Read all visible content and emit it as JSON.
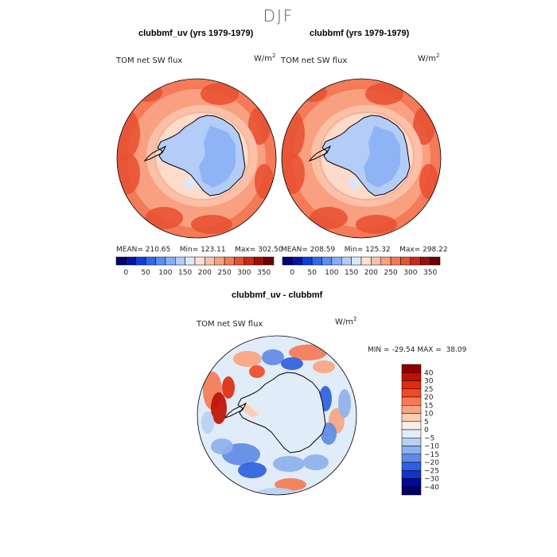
{
  "season": "DJF",
  "panels": [
    {
      "title": "clubbmf_uv (yrs 1979-1979)",
      "variable": "TOM net SW flux",
      "units_base": "W/m",
      "units_exp": "2",
      "stats": {
        "mean_label": "MEAN=",
        "mean": "210.65",
        "min_label": "Min=",
        "min": "123.11",
        "max_label": "Max=",
        "max": "302.50"
      }
    },
    {
      "title": "clubbmf (yrs 1979-1979)",
      "variable": "TOM net SW flux",
      "units_base": "W/m",
      "units_exp": "2",
      "stats": {
        "mean_label": "MEAN=",
        "mean": "208.59",
        "min_label": "Min=",
        "min": "125.32",
        "max_label": "Max=",
        "max": "298.22"
      }
    }
  ],
  "diff_panel": {
    "title": "clubbmf_uv - clubbmf",
    "variable": "TOM net SW flux",
    "units_base": "W/m",
    "units_exp": "2",
    "minmax": {
      "min_label": "MIN =",
      "min": "-29.54",
      "max_label": "MAX =",
      "max": "38.09"
    }
  },
  "chart_data": [
    {
      "type": "heatmap",
      "projection": "south-polar-stereographic",
      "title": "clubbmf_uv (yrs 1979-1979)",
      "field": "TOM net SW flux",
      "units": "W/m2",
      "mean": 210.65,
      "min": 123.11,
      "max": 302.5,
      "colorbar": {
        "orientation": "horizontal",
        "levels": [
          0,
          25,
          50,
          75,
          100,
          125,
          150,
          175,
          200,
          225,
          250,
          275,
          300,
          325,
          350
        ],
        "tick_labels": [
          "0",
          "50",
          "100",
          "150",
          "200",
          "250",
          "300",
          "350"
        ],
        "colors": [
          "#00006e",
          "#0015a8",
          "#0a3ee0",
          "#2f6ae8",
          "#5a8ef0",
          "#86aef5",
          "#b3ccf8",
          "#dbe8fb",
          "#fde0d0",
          "#fbc1a8",
          "#f8a07f",
          "#f47a58",
          "#e85234",
          "#cc2a14",
          "#9e0e06",
          "#6e0000"
        ]
      }
    },
    {
      "type": "heatmap",
      "projection": "south-polar-stereographic",
      "title": "clubbmf (yrs 1979-1979)",
      "field": "TOM net SW flux",
      "units": "W/m2",
      "mean": 208.59,
      "min": 125.32,
      "max": 298.22,
      "colorbar": {
        "orientation": "horizontal",
        "levels": [
          0,
          25,
          50,
          75,
          100,
          125,
          150,
          175,
          200,
          225,
          250,
          275,
          300,
          325,
          350
        ],
        "tick_labels": [
          "0",
          "50",
          "100",
          "150",
          "200",
          "250",
          "300",
          "350"
        ],
        "colors": [
          "#00006e",
          "#0015a8",
          "#0a3ee0",
          "#2f6ae8",
          "#5a8ef0",
          "#86aef5",
          "#b3ccf8",
          "#dbe8fb",
          "#fde0d0",
          "#fbc1a8",
          "#f8a07f",
          "#f47a58",
          "#e85234",
          "#cc2a14",
          "#9e0e06",
          "#6e0000"
        ]
      }
    },
    {
      "type": "heatmap",
      "projection": "south-polar-stereographic",
      "title": "clubbmf_uv - clubbmf",
      "field": "TOM net SW flux",
      "units": "W/m2",
      "min": -29.54,
      "max": 38.09,
      "colorbar": {
        "orientation": "vertical",
        "levels": [
          -40,
          -30,
          -25,
          -20,
          -15,
          -10,
          -5,
          0,
          5,
          10,
          15,
          20,
          25,
          30,
          40
        ],
        "tick_labels": [
          "40",
          "30",
          "25",
          "20",
          "15",
          "10",
          "5",
          "0",
          "−5",
          "−10",
          "−15",
          "−20",
          "−25",
          "−30",
          "−40"
        ],
        "colors": [
          "#8b0000",
          "#c01000",
          "#e02a10",
          "#f04a28",
          "#f57a55",
          "#f8a580",
          "#fbcdb5",
          "#fdeee5",
          "#e0ecf8",
          "#b8d0f2",
          "#8eb1ec",
          "#5f8be6",
          "#2f5fe0",
          "#1034c8",
          "#000a96",
          "#000064"
        ]
      }
    }
  ]
}
